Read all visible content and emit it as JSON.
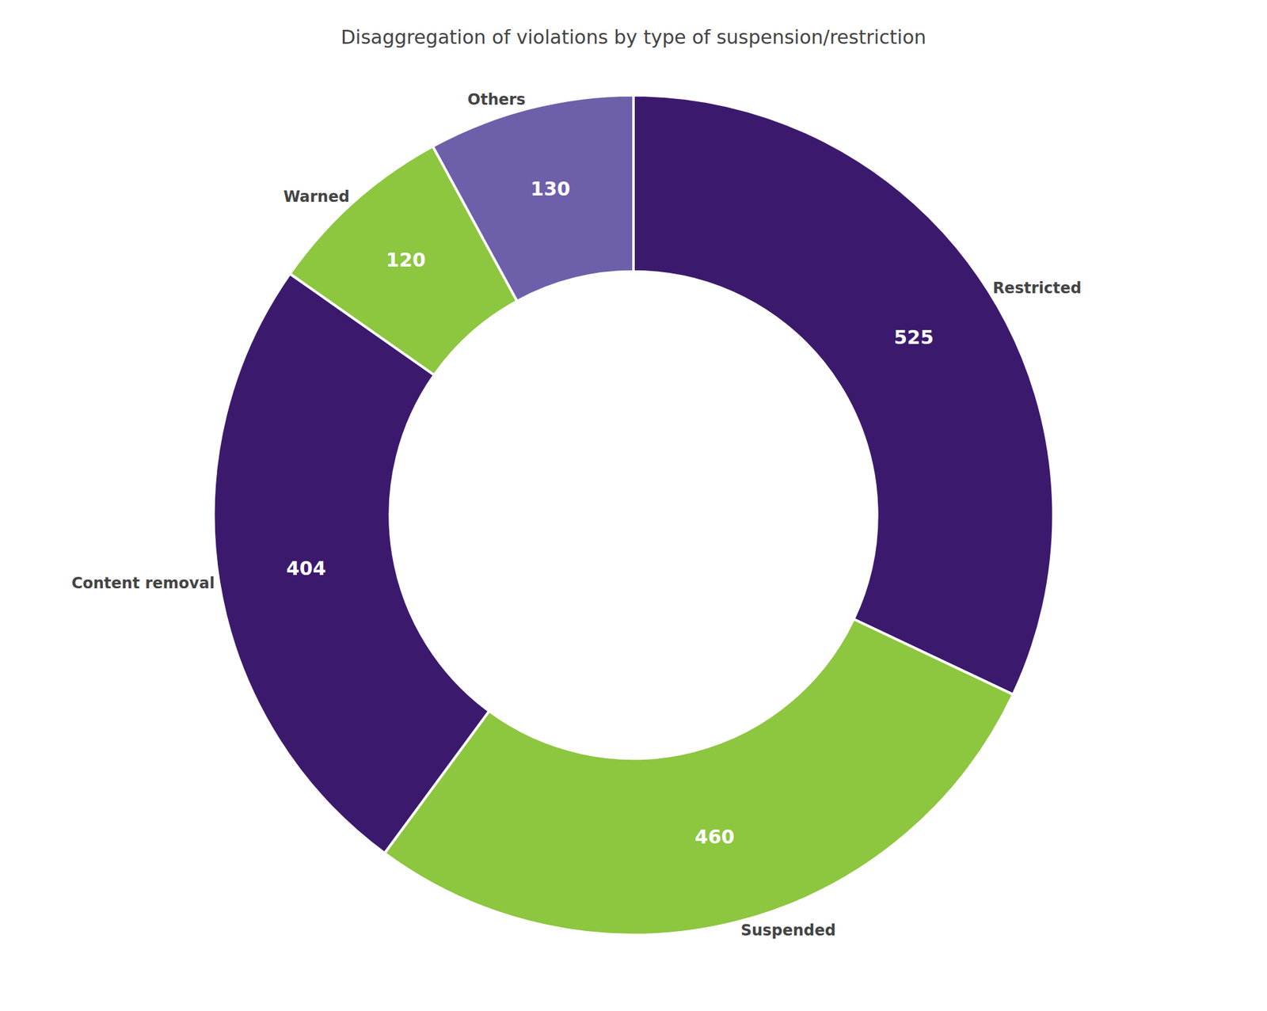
{
  "chart_data": {
    "type": "pie",
    "title": "Disaggregation of violations by type of suspension/restriction",
    "categories": [
      "Restricted",
      "Suspended",
      "Content removal",
      "Warned",
      "Others"
    ],
    "values": [
      525,
      460,
      404,
      120,
      130
    ],
    "colors": [
      "#3b1a6d",
      "#8dc63f",
      "#3b1a6d",
      "#8dc63f",
      "#6e5faa"
    ],
    "data_labels": true
  }
}
